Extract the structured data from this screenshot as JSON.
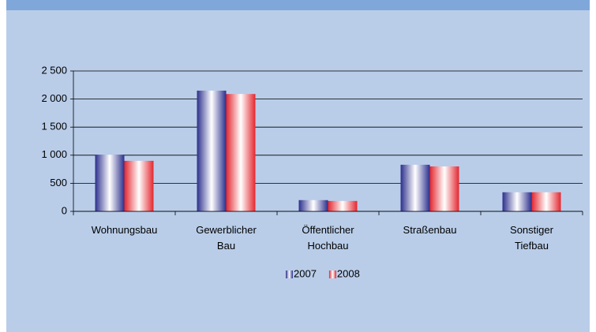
{
  "chart_data": {
    "type": "bar",
    "categories": [
      "Wohnungsbau",
      "Gewerblicher Bau",
      "Öffentlicher Hochbau",
      "Straßenbau",
      "Sonstiger Tiefbau"
    ],
    "series": [
      {
        "name": "2007",
        "color": "#2b2f8c",
        "values": [
          1010,
          2150,
          200,
          830,
          340
        ]
      },
      {
        "name": "2008",
        "color": "#e3262e",
        "values": [
          900,
          2090,
          185,
          800,
          340
        ]
      }
    ],
    "ylim": [
      0,
      2500
    ],
    "yticks": [
      0,
      500,
      {
        "value": 1000,
        "label": "1 000"
      },
      {
        "value": 1500,
        "label": "1 500"
      },
      {
        "value": 2000,
        "label": "2 000"
      },
      {
        "value": 2500,
        "label": "2 500"
      }
    ],
    "grid": true,
    "legend": "bottom"
  }
}
